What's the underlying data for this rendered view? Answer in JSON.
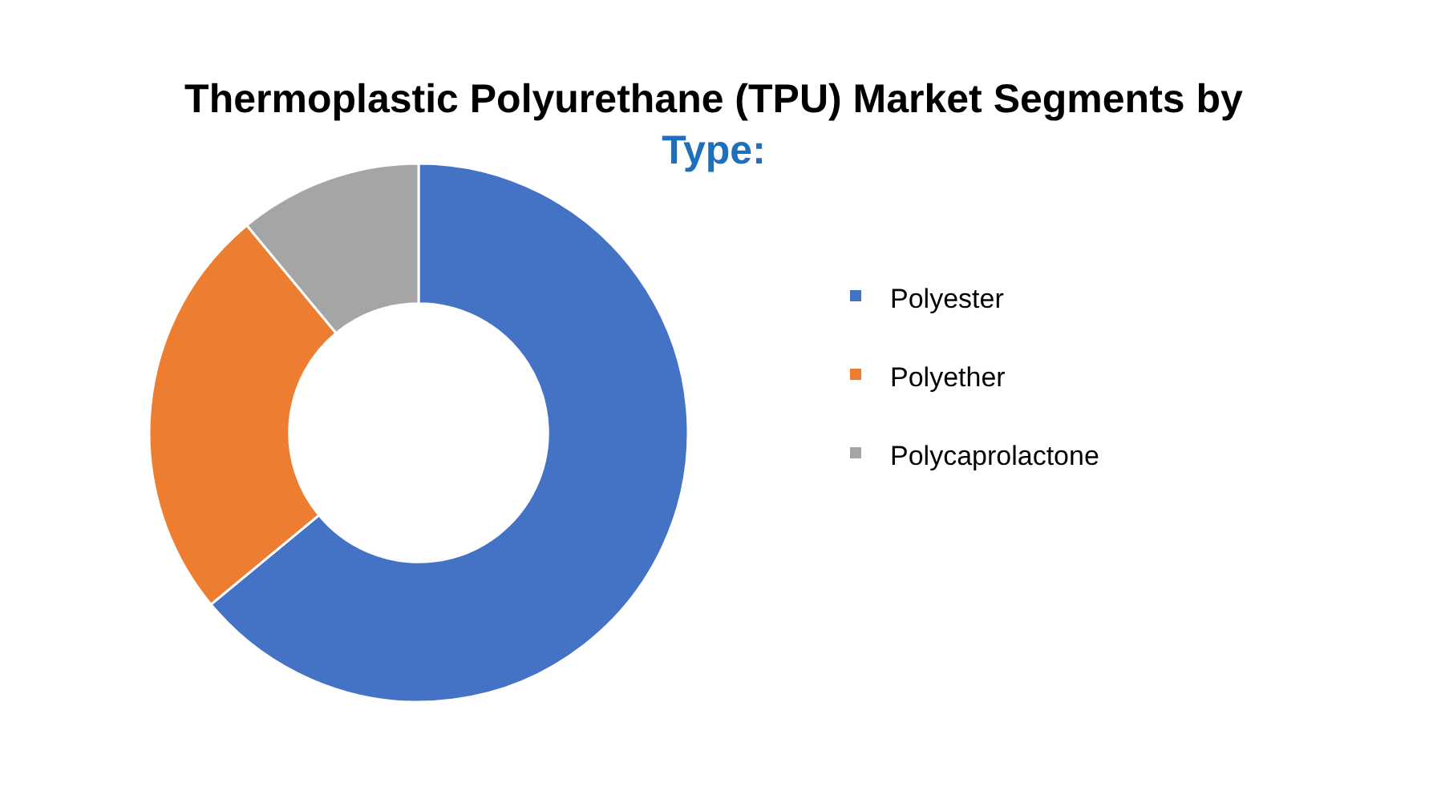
{
  "chart_data": {
    "type": "donut",
    "title": "Thermoplastic Polyurethane (TPU) Market Segments by Type:",
    "categories": [
      "Polyester",
      "Polyether",
      "Polycaprolactone"
    ],
    "values": [
      64,
      25,
      11
    ],
    "colors": [
      "#4472c4",
      "#ed7d31",
      "#a5a5a5"
    ],
    "legend": "right"
  }
}
